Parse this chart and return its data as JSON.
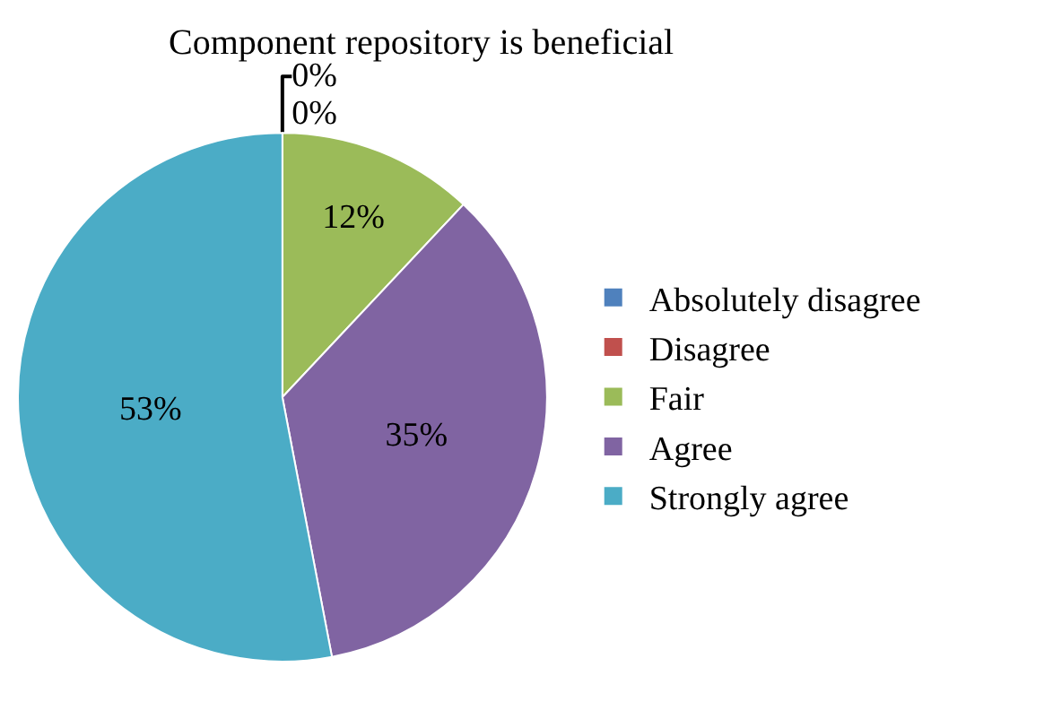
{
  "chart_data": {
    "type": "pie",
    "title": "Component repository is beneficial",
    "categories": [
      "Absolutely disagree",
      "Disagree",
      "Fair",
      "Agree",
      "Strongly agree"
    ],
    "values": [
      0,
      0,
      12,
      35,
      53
    ],
    "colors": [
      "#4f81bd",
      "#c0504d",
      "#9bbb59",
      "#8064a2",
      "#4bacc6"
    ],
    "value_labels": [
      "0%",
      "0%",
      "12%",
      "35%",
      "53%"
    ],
    "legend": "right"
  }
}
